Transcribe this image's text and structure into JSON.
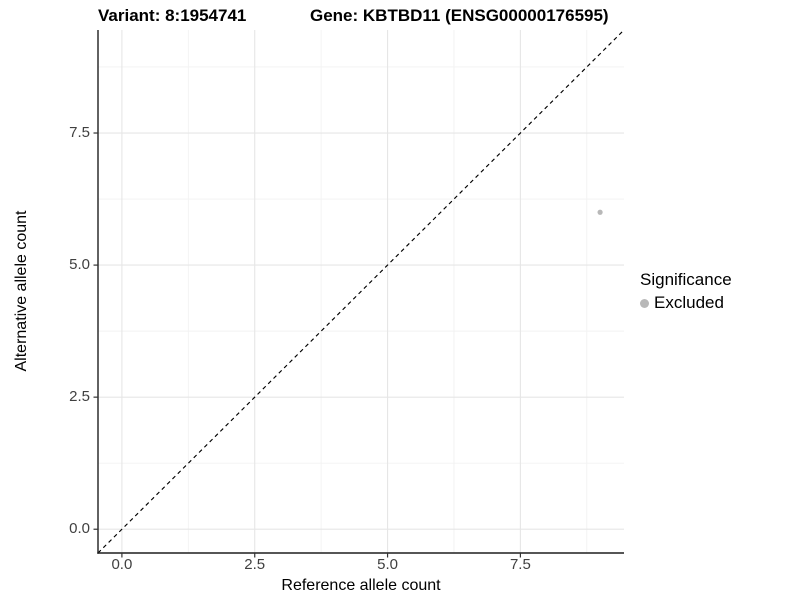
{
  "chart_data": {
    "type": "scatter",
    "titles": {
      "left": "Variant: 8:1954741",
      "right": "Gene: KBTBD11 (ENSG00000176595)"
    },
    "xlabel": "Reference allele count",
    "ylabel": "Alternative allele count",
    "xlim": [
      -0.45,
      9.45
    ],
    "ylim": [
      -0.45,
      9.45
    ],
    "x_ticks": {
      "values": [
        0,
        2.5,
        5,
        7.5
      ],
      "labels": [
        "0.0",
        "2.5",
        "5.0",
        "7.5"
      ]
    },
    "y_ticks": {
      "values": [
        0,
        2.5,
        5,
        7.5
      ],
      "labels": [
        "0.0",
        "2.5",
        "5.0",
        "7.5"
      ]
    },
    "minor_ticks": [
      1.25,
      3.75,
      6.25,
      8.75
    ],
    "grid": {
      "on": true,
      "major_color": "#e6e6e6",
      "minor_color": "#f2f2f2"
    },
    "reference_line": {
      "equation": "y = x",
      "style": "dashed",
      "color": "#000000"
    },
    "series": [
      {
        "name": "Excluded",
        "color": "#b8b8b8",
        "points": [
          {
            "x": 9,
            "y": 6
          }
        ]
      }
    ],
    "legend": {
      "title": "Significance",
      "position": "right",
      "entries": [
        {
          "label": "Excluded",
          "color": "#b8b8b8"
        }
      ]
    }
  }
}
